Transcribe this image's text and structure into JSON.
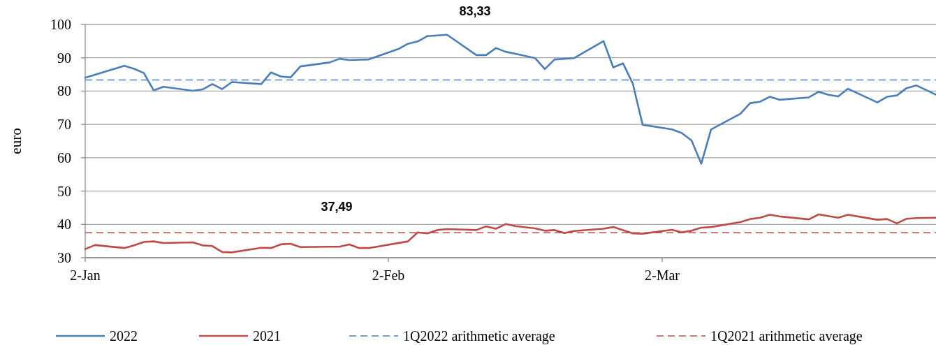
{
  "chart_data": {
    "type": "line",
    "ylabel": "euro",
    "xlim": [
      "--01-02",
      "--03-30"
    ],
    "xticks": [
      {
        "value": "--01-02",
        "label": "2-Jan"
      },
      {
        "value": "--02-02",
        "label": "2-Feb"
      },
      {
        "value": "--03-02",
        "label": "2-Mar"
      }
    ],
    "ylim": [
      30,
      100
    ],
    "yticks": [
      30,
      40,
      50,
      60,
      70,
      80,
      90,
      100
    ],
    "grid": "y",
    "legend": "bottom",
    "marker": "none",
    "line_style": "solid",
    "x": [
      "--01-02",
      "--01-06",
      "--01-07",
      "--01-08",
      "--01-09",
      "--01-10",
      "--01-13",
      "--01-14",
      "--01-15",
      "--01-16",
      "--01-17",
      "--01-20",
      "--01-21",
      "--01-22",
      "--01-23",
      "--01-24",
      "--01-27",
      "--01-28",
      "--01-29",
      "--01-31",
      "--02-03",
      "--02-04",
      "--02-05",
      "--02-06",
      "--02-08",
      "--02-11",
      "--02-12",
      "--02-13",
      "--02-14",
      "--02-15",
      "--02-17",
      "--02-18",
      "--02-19",
      "--02-21",
      "--02-24",
      "--02-25",
      "--02-26",
      "--02-27",
      "--02-28",
      "--03-03",
      "--03-04",
      "--03-05",
      "--03-06",
      "--03-07",
      "--03-10",
      "--03-11",
      "--03-12",
      "--03-13",
      "--03-14",
      "--03-17",
      "--03-18",
      "--03-19",
      "--03-20",
      "--03-21",
      "--03-24",
      "--03-25",
      "--03-26",
      "--03-27",
      "--03-28",
      "--03-30"
    ],
    "series": [
      {
        "name": "2022",
        "color": "#4a7ebb",
        "values": [
          84.0,
          87.6,
          86.7,
          85.4,
          80.2,
          81.3,
          80.1,
          80.5,
          82.1,
          80.6,
          82.7,
          82.1,
          85.6,
          84.4,
          84.1,
          87.4,
          88.6,
          89.7,
          89.3,
          89.5,
          92.6,
          94.2,
          94.9,
          96.5,
          96.9,
          90.8,
          90.8,
          92.9,
          91.8,
          91.2,
          89.9,
          86.6,
          89.5,
          89.9,
          95.0,
          87.1,
          88.3,
          82.2,
          69.9,
          68.5,
          67.4,
          65.2,
          58.2,
          68.5,
          73.2,
          76.4,
          76.8,
          78.3,
          77.4,
          78.1,
          79.8,
          78.9,
          78.4,
          80.7,
          76.6,
          78.3,
          78.7,
          80.9,
          81.7,
          78.9
        ]
      },
      {
        "name": "2021",
        "color": "#be4b48",
        "x": [
          "--01-02",
          "--01-03",
          "--01-06",
          "--01-07",
          "--01-08",
          "--01-09",
          "--01-10",
          "--01-13",
          "--01-14",
          "--01-15",
          "--01-16",
          "--01-17",
          "--01-20",
          "--01-21",
          "--01-22",
          "--01-23",
          "--01-24",
          "--01-27",
          "--01-28",
          "--01-29",
          "--01-30",
          "--01-31",
          "--02-04",
          "--02-05",
          "--02-06",
          "--02-07",
          "--02-08",
          "--02-11",
          "--02-12",
          "--02-13",
          "--02-14",
          "--02-15",
          "--02-17",
          "--02-18",
          "--02-19",
          "--02-20",
          "--02-21",
          "--02-24",
          "--02-25",
          "--02-27",
          "--02-28",
          "--03-03",
          "--03-04",
          "--03-05",
          "--03-06",
          "--03-07",
          "--03-10",
          "--03-11",
          "--03-12",
          "--03-13",
          "--03-14",
          "--03-17",
          "--03-18",
          "--03-20",
          "--03-21",
          "--03-24",
          "--03-25",
          "--03-26",
          "--03-27",
          "--03-28",
          "--03-30"
        ],
        "values": [
          32.6,
          33.8,
          32.9,
          33.7,
          34.7,
          34.9,
          34.4,
          34.6,
          33.7,
          33.5,
          31.7,
          31.6,
          33.0,
          32.9,
          34.0,
          34.2,
          33.2,
          33.3,
          33.3,
          34.0,
          32.9,
          32.9,
          34.9,
          37.6,
          37.3,
          38.3,
          38.6,
          38.3,
          39.4,
          38.7,
          40.1,
          39.5,
          38.8,
          38.1,
          38.3,
          37.4,
          38.0,
          38.7,
          39.2,
          37.3,
          37.2,
          38.4,
          37.6,
          38.1,
          39.0,
          39.2,
          40.7,
          41.6,
          42.0,
          42.9,
          42.4,
          41.5,
          43.0,
          42.0,
          42.9,
          41.4,
          41.6,
          40.3,
          41.7,
          41.9,
          42.0
        ]
      }
    ],
    "ref_lines": [
      {
        "axis": "y",
        "value": 83.33,
        "label": "1Q2022 arithmetic average",
        "color": "#4a7ebb",
        "line_style": "dashed"
      },
      {
        "axis": "y",
        "value": 37.49,
        "label": "1Q2021 arithmetic average",
        "color": "#be4b48",
        "line_style": "dashed"
      }
    ],
    "annotations": [
      "83,33",
      "37,49"
    ]
  }
}
